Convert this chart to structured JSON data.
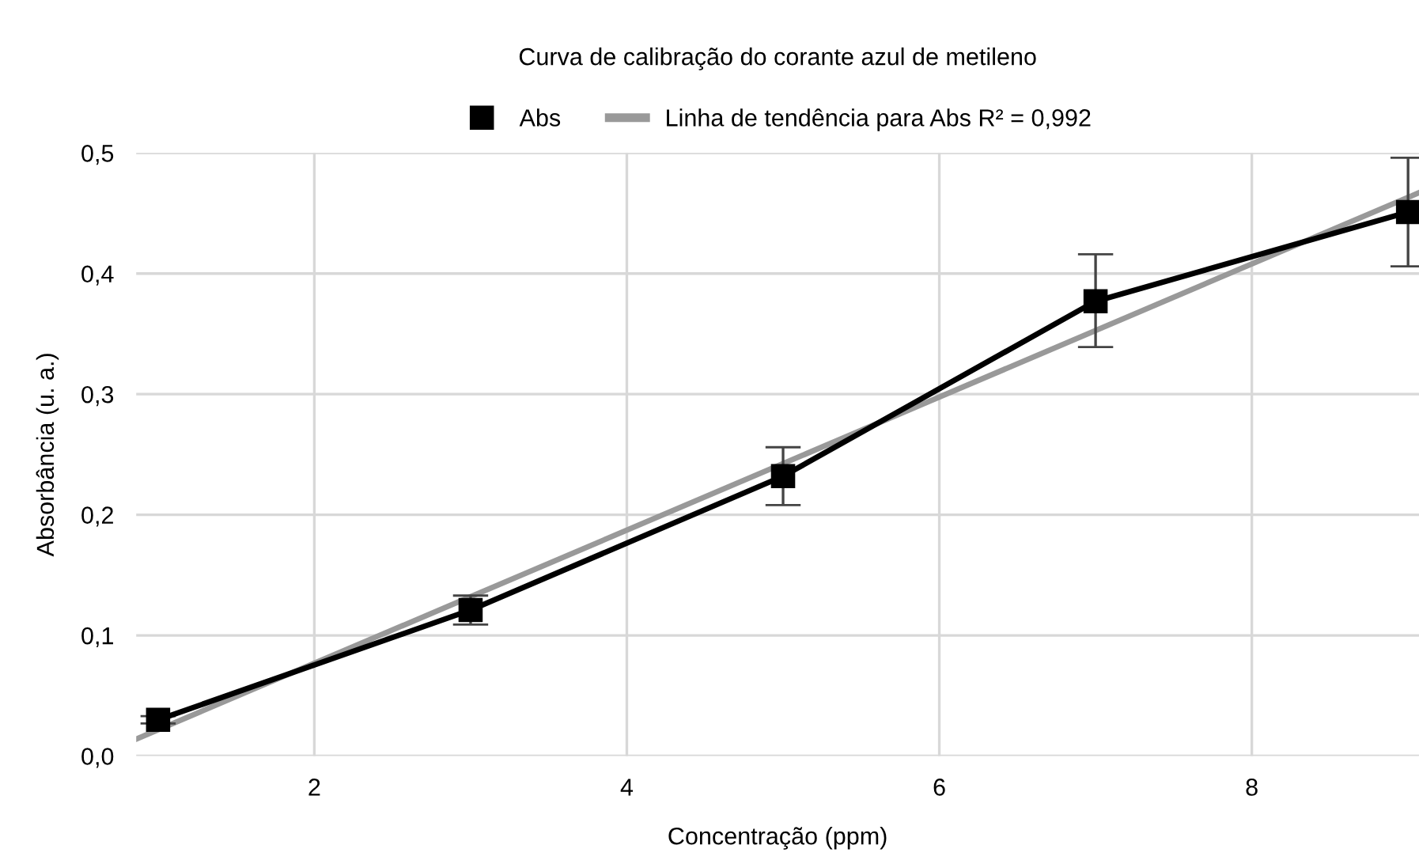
{
  "chart_data": {
    "type": "line",
    "title": "Curva de calibração do corante azul de metileno",
    "xlabel": "Concentração (ppm)",
    "ylabel": "Absorbância (u. a.)",
    "xlim": [
      0.86,
      9.07
    ],
    "xticks": [
      2,
      4,
      6,
      8
    ],
    "ylim": [
      0,
      0.5
    ],
    "yticks": [
      {
        "value": 0,
        "label": "0,0"
      },
      {
        "value": 0.1,
        "label": "0,1"
      },
      {
        "value": 0.2,
        "label": "0,2"
      },
      {
        "value": 0.3,
        "label": "0,3"
      },
      {
        "value": 0.4,
        "label": "0,4"
      },
      {
        "value": 0.5,
        "label": "0,5"
      }
    ],
    "grid": true,
    "legend": "top",
    "series": [
      {
        "name": "Abs",
        "color": "#000000",
        "marker": "square",
        "x": [
          1,
          3,
          5,
          7,
          9
        ],
        "values": [
          0.03,
          0.121,
          0.232,
          0.377,
          0.451
        ],
        "errors": [
          0.003,
          0.012,
          0.024,
          [
            0.339,
            0.416
          ],
          0.045
        ]
      },
      {
        "name": "Linha de tendência para Abs R² = 0,992",
        "color": "#999999",
        "marker": "none",
        "x": [
          0.86,
          9.07
        ],
        "values": [
          0.014,
          0.467
        ]
      }
    ]
  }
}
